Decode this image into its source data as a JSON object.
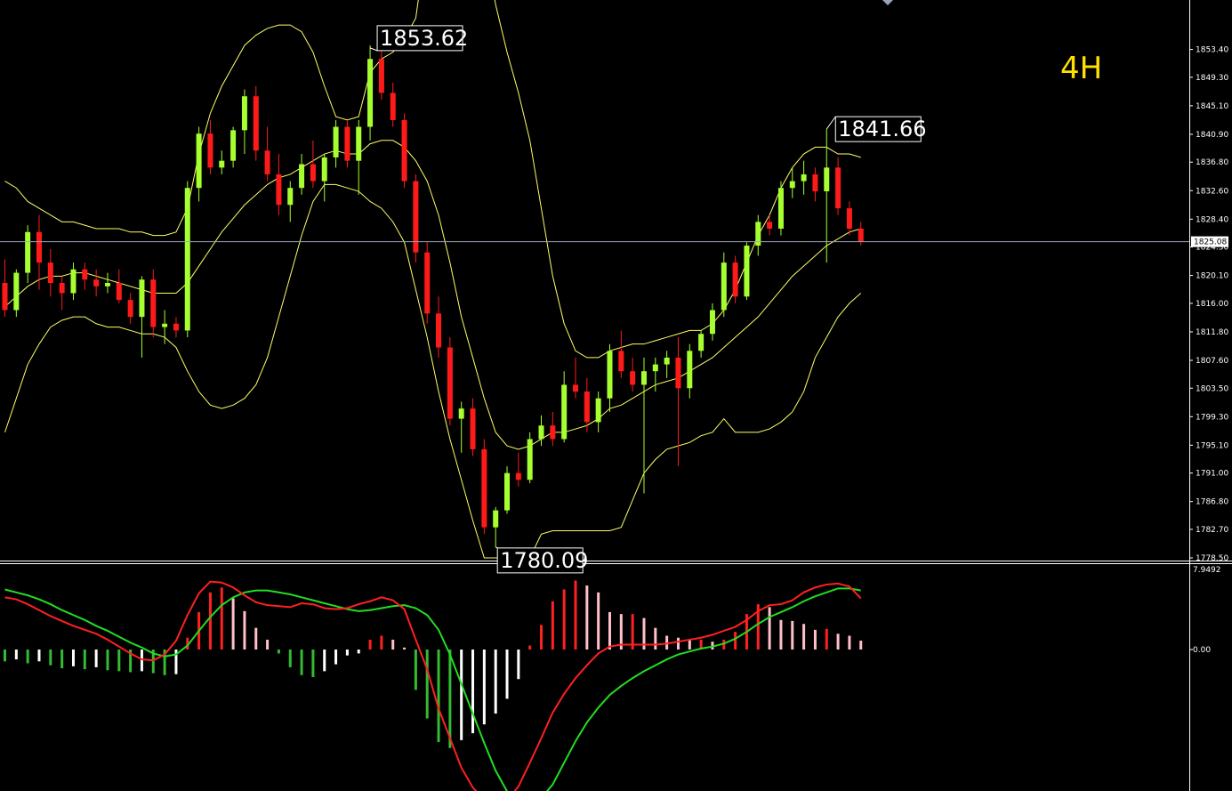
{
  "timeframe_label": "4H",
  "colors": {
    "background": "#000000",
    "bull": "#a6ff2e",
    "bear": "#ff1a1a",
    "band": "#ffff66",
    "macd_line": "#ff2020",
    "signal_line": "#22dd22",
    "hist_pos_grow": "#ff2020",
    "hist_pos_shrink": "#ffc0c8",
    "hist_neg_grow": "#33bb33",
    "hist_neg_shrink": "#ffffff",
    "axis": "#ffffff",
    "crosshair": "#9aa4b8"
  },
  "price_axis": {
    "ticks": [
      "1853.40",
      "1849.30",
      "1845.10",
      "1840.90",
      "1836.80",
      "1832.60",
      "1828.40",
      "1824.30",
      "1820.10",
      "1816.00",
      "1811.80",
      "1807.60",
      "1803.50",
      "1799.30",
      "1795.10",
      "1791.00",
      "1786.80",
      "1782.70",
      "1778.50"
    ],
    "current_price": "1825.08"
  },
  "annotations": [
    {
      "text": "1853.62"
    },
    {
      "text": "1841.66"
    },
    {
      "text": "1780.09"
    }
  ],
  "macd_axis": {
    "top_label": "7.9492",
    "zero_label": "0.00"
  },
  "chart_data": {
    "type": "candlestick",
    "price_range": [
      1778.5,
      1857.8
    ],
    "crosshair_price": 1825.08,
    "extremes": {
      "high": 1853.62,
      "recent_high": 1841.66,
      "low": 1780.09
    },
    "candles": [
      [
        1819.0,
        1822.5,
        1814.0,
        1815.0
      ],
      [
        1815.0,
        1821.0,
        1814.0,
        1820.5
      ],
      [
        1820.5,
        1827.5,
        1819.0,
        1826.5
      ],
      [
        1826.5,
        1829.0,
        1818.0,
        1822.0
      ],
      [
        1822.0,
        1824.0,
        1817.0,
        1819.0
      ],
      [
        1819.0,
        1820.0,
        1815.0,
        1817.5
      ],
      [
        1817.5,
        1822.0,
        1816.5,
        1821.0
      ],
      [
        1821.0,
        1822.0,
        1818.0,
        1819.5
      ],
      [
        1819.5,
        1821.0,
        1817.0,
        1818.5
      ],
      [
        1818.5,
        1820.5,
        1817.5,
        1819.0
      ],
      [
        1819.0,
        1821.0,
        1816.0,
        1816.5
      ],
      [
        1816.5,
        1817.5,
        1813.0,
        1814.0
      ],
      [
        1814.0,
        1820.0,
        1808.0,
        1819.5
      ],
      [
        1819.5,
        1821.0,
        1811.0,
        1812.5
      ],
      [
        1812.5,
        1815.0,
        1810.0,
        1813.0
      ],
      [
        1813.0,
        1814.0,
        1811.0,
        1812.0
      ],
      [
        1812.0,
        1834.0,
        1811.0,
        1833.0
      ],
      [
        1833.0,
        1842.0,
        1831.0,
        1841.0
      ],
      [
        1841.0,
        1843.0,
        1835.0,
        1836.0
      ],
      [
        1836.0,
        1838.5,
        1835.0,
        1837.0
      ],
      [
        1837.0,
        1842.0,
        1836.0,
        1841.5
      ],
      [
        1841.5,
        1847.5,
        1838.0,
        1846.5
      ],
      [
        1846.5,
        1848.0,
        1837.0,
        1838.5
      ],
      [
        1838.5,
        1842.0,
        1834.0,
        1835.0
      ],
      [
        1835.0,
        1838.0,
        1829.0,
        1830.5
      ],
      [
        1830.5,
        1834.0,
        1828.0,
        1833.0
      ],
      [
        1833.0,
        1838.0,
        1832.0,
        1836.5
      ],
      [
        1836.5,
        1840.0,
        1833.0,
        1834.0
      ],
      [
        1834.0,
        1838.0,
        1831.0,
        1837.5
      ],
      [
        1837.5,
        1843.0,
        1836.0,
        1842.0
      ],
      [
        1842.0,
        1843.0,
        1836.0,
        1837.0
      ],
      [
        1837.0,
        1843.0,
        1832.0,
        1842.0
      ],
      [
        1842.0,
        1854.0,
        1840.0,
        1852.0
      ],
      [
        1852.0,
        1853.62,
        1846.0,
        1847.0
      ],
      [
        1847.0,
        1848.5,
        1842.0,
        1843.0
      ],
      [
        1843.0,
        1844.0,
        1833.0,
        1834.0
      ],
      [
        1834.0,
        1835.0,
        1822.0,
        1823.5
      ],
      [
        1823.5,
        1825.0,
        1813.0,
        1814.5
      ],
      [
        1814.5,
        1817.0,
        1808.0,
        1809.5
      ],
      [
        1809.5,
        1811.0,
        1798.0,
        1799.0
      ],
      [
        1799.0,
        1801.5,
        1794.0,
        1800.5
      ],
      [
        1800.5,
        1802.0,
        1793.5,
        1794.5
      ],
      [
        1794.5,
        1796.0,
        1782.0,
        1783.0
      ],
      [
        1783.0,
        1786.0,
        1780.09,
        1785.5
      ],
      [
        1785.5,
        1792.0,
        1785.0,
        1791.0
      ],
      [
        1791.0,
        1794.0,
        1789.0,
        1790.0
      ],
      [
        1790.0,
        1797.0,
        1789.5,
        1796.0
      ],
      [
        1796.0,
        1799.5,
        1795.0,
        1798.0
      ],
      [
        1798.0,
        1800.0,
        1795.0,
        1796.0
      ],
      [
        1796.0,
        1806.0,
        1795.5,
        1804.0
      ],
      [
        1804.0,
        1808.0,
        1802.0,
        1803.0
      ],
      [
        1803.0,
        1805.0,
        1797.0,
        1798.5
      ],
      [
        1798.5,
        1803.0,
        1797.0,
        1802.0
      ],
      [
        1802.0,
        1810.0,
        1800.0,
        1809.0
      ],
      [
        1809.0,
        1812.0,
        1805.0,
        1806.0
      ],
      [
        1806.0,
        1808.0,
        1803.0,
        1804.0
      ],
      [
        1804.0,
        1808.0,
        1788.0,
        1806.0
      ],
      [
        1806.0,
        1808.0,
        1803.0,
        1807.0
      ],
      [
        1807.0,
        1809.0,
        1805.0,
        1808.0
      ],
      [
        1808.0,
        1811.0,
        1792.0,
        1803.5
      ],
      [
        1803.5,
        1810.0,
        1802.0,
        1809.0
      ],
      [
        1809.0,
        1812.0,
        1808.0,
        1811.5
      ],
      [
        1811.5,
        1816.0,
        1810.5,
        1815.0
      ],
      [
        1815.0,
        1823.5,
        1814.0,
        1822.0
      ],
      [
        1822.0,
        1823.0,
        1816.0,
        1817.0
      ],
      [
        1817.0,
        1825.0,
        1816.5,
        1824.5
      ],
      [
        1824.5,
        1829.0,
        1823.0,
        1828.0
      ],
      [
        1828.0,
        1829.0,
        1826.0,
        1827.0
      ],
      [
        1827.0,
        1834.0,
        1826.0,
        1833.0
      ],
      [
        1833.0,
        1836.0,
        1831.5,
        1834.0
      ],
      [
        1834.0,
        1837.0,
        1832.0,
        1835.0
      ],
      [
        1835.0,
        1836.0,
        1831.0,
        1832.5
      ],
      [
        1832.5,
        1841.66,
        1822.0,
        1836.0
      ],
      [
        1836.0,
        1837.5,
        1829.0,
        1830.0
      ],
      [
        1830.0,
        1831.0,
        1826.0,
        1827.0
      ],
      [
        1827.0,
        1828.0,
        1824.5,
        1825.08
      ]
    ],
    "band_upper": [
      1834.0,
      1833.0,
      1831.0,
      1830.0,
      1829.0,
      1828.0,
      1828.0,
      1827.5,
      1827.0,
      1827.0,
      1827.0,
      1826.5,
      1826.5,
      1826.0,
      1826.0,
      1826.5,
      1830.0,
      1838.0,
      1844.0,
      1848.0,
      1851.0,
      1854.0,
      1855.5,
      1856.5,
      1857.0,
      1857.0,
      1856.0,
      1853.0,
      1848.0,
      1843.5,
      1843.0,
      1843.5,
      1850.0,
      1852.0,
      1853.0,
      1855.0,
      1858.0,
      1870.0,
      1870.0,
      1870.0,
      1870.0,
      1870.0,
      1870.0,
      1860.0,
      1853.0,
      1847.0,
      1840.0,
      1830.0,
      1820.0,
      1813.0,
      1809.0,
      1808.0,
      1808.0,
      1809.0,
      1809.5,
      1810.0,
      1810.0,
      1810.5,
      1811.0,
      1811.5,
      1812.0,
      1812.0,
      1813.0,
      1815.0,
      1818.0,
      1822.0,
      1826.0,
      1829.0,
      1833.0,
      1836.0,
      1838.0,
      1839.0,
      1839.0,
      1838.0,
      1838.0,
      1837.5
    ],
    "band_lower": [
      1797.0,
      1802.0,
      1807.0,
      1810.0,
      1812.5,
      1813.5,
      1814.0,
      1814.0,
      1813.0,
      1812.5,
      1812.5,
      1812.0,
      1811.5,
      1811.5,
      1811.0,
      1809.5,
      1806.0,
      1803.0,
      1801.0,
      1800.5,
      1801.0,
      1802.0,
      1804.0,
      1808.0,
      1814.0,
      1820.0,
      1826.0,
      1831.0,
      1833.5,
      1833.5,
      1833.0,
      1832.5,
      1831.0,
      1830.0,
      1828.0,
      1825.0,
      1818.0,
      1811.0,
      1803.0,
      1796.0,
      1790.0,
      1784.0,
      1778.5,
      1778.5,
      1778.5,
      1778.5,
      1778.5,
      1782.0,
      1782.5,
      1782.5,
      1782.5,
      1782.5,
      1782.5,
      1782.5,
      1783.0,
      1787.0,
      1791.0,
      1793.0,
      1794.5,
      1795.0,
      1795.5,
      1796.5,
      1797.0,
      1799.0,
      1797.0,
      1797.0,
      1797.0,
      1797.5,
      1798.5,
      1800.0,
      1803.0,
      1808.0,
      1811.0,
      1814.0,
      1816.0,
      1817.5
    ],
    "band_middle": [
      1815.5,
      1817.0,
      1818.5,
      1819.5,
      1820.0,
      1820.0,
      1820.5,
      1820.5,
      1820.0,
      1819.5,
      1819.0,
      1818.5,
      1818.0,
      1817.5,
      1817.5,
      1817.5,
      1819.0,
      1821.5,
      1824.0,
      1826.5,
      1828.5,
      1830.5,
      1832.0,
      1833.5,
      1834.5,
      1835.0,
      1836.0,
      1837.0,
      1838.0,
      1838.5,
      1838.0,
      1838.0,
      1839.5,
      1840.0,
      1840.0,
      1839.0,
      1837.0,
      1834.0,
      1829.0,
      1822.0,
      1814.0,
      1808.0,
      1802.0,
      1797.0,
      1795.0,
      1794.5,
      1795.0,
      1796.0,
      1797.0,
      1797.0,
      1797.5,
      1798.0,
      1799.0,
      1800.5,
      1801.0,
      1802.0,
      1803.0,
      1804.0,
      1804.5,
      1805.0,
      1806.0,
      1807.0,
      1808.0,
      1809.5,
      1811.0,
      1812.5,
      1814.0,
      1816.0,
      1818.0,
      1820.0,
      1821.5,
      1823.0,
      1824.5,
      1825.5,
      1826.5,
      1827.0
    ],
    "macd": {
      "range": [
        -10.0,
        7.9492
      ],
      "histogram": [
        -1.2,
        -1.0,
        -1.4,
        -1.2,
        -1.6,
        -1.9,
        -1.7,
        -2.0,
        -1.8,
        -2.1,
        -2.2,
        -2.3,
        -2.2,
        -2.4,
        -2.6,
        -2.5,
        1.2,
        3.8,
        5.8,
        6.3,
        5.2,
        3.9,
        2.2,
        1.0,
        -0.4,
        -1.8,
        -2.6,
        -2.8,
        -2.2,
        -1.5,
        -0.6,
        -0.4,
        1.0,
        1.4,
        1.0,
        0.2,
        -4.1,
        -7.0,
        -9.4,
        -10.0,
        -9.2,
        -8.5,
        -7.6,
        -6.5,
        -5.0,
        -3.0,
        0.4,
        2.5,
        4.9,
        6.1,
        7.0,
        6.5,
        5.8,
        3.8,
        3.6,
        3.6,
        3.2,
        2.2,
        1.4,
        1.2,
        1.0,
        1.0,
        0.8,
        1.0,
        1.8,
        3.6,
        4.6,
        4.3,
        3.0,
        2.9,
        2.6,
        2.0,
        2.1,
        1.6,
        1.4,
        0.9
      ],
      "macd_line": [
        5.3,
        5.1,
        4.6,
        4.0,
        3.4,
        2.9,
        2.4,
        2.0,
        1.6,
        1.0,
        0.3,
        -0.4,
        -1.0,
        -1.1,
        -0.5,
        0.9,
        3.5,
        5.7,
        6.9,
        6.8,
        6.3,
        5.5,
        4.8,
        4.5,
        4.4,
        4.3,
        4.7,
        4.6,
        4.2,
        4.1,
        4.2,
        4.6,
        4.9,
        5.3,
        5.0,
        4.1,
        1.0,
        -2.0,
        -6.0,
        -9.0,
        -12.0,
        -14.0,
        -15.3,
        -15.7,
        -15.4,
        -13.9,
        -11.5,
        -9.0,
        -6.4,
        -4.5,
        -2.9,
        -1.6,
        -0.4,
        0.3,
        0.5,
        0.5,
        0.5,
        0.5,
        0.6,
        0.8,
        1.0,
        1.2,
        1.5,
        1.9,
        2.3,
        3.0,
        3.9,
        4.5,
        4.6,
        5.0,
        5.8,
        6.3,
        6.6,
        6.7,
        6.4,
        5.2
      ],
      "signal_line": [
        6.1,
        5.8,
        5.5,
        5.1,
        4.6,
        4.0,
        3.5,
        3.0,
        2.4,
        1.9,
        1.3,
        0.7,
        0.2,
        -0.4,
        -0.7,
        -0.5,
        0.4,
        1.9,
        3.3,
        4.5,
        5.3,
        5.8,
        6.0,
        6.0,
        5.8,
        5.6,
        5.3,
        5.0,
        4.7,
        4.4,
        4.1,
        3.9,
        4.0,
        4.2,
        4.4,
        4.5,
        4.2,
        3.5,
        2.0,
        -0.5,
        -3.5,
        -6.5,
        -9.5,
        -12.3,
        -14.4,
        -15.4,
        -15.6,
        -15.1,
        -13.7,
        -11.5,
        -9.3,
        -7.4,
        -5.9,
        -4.6,
        -3.7,
        -2.9,
        -2.2,
        -1.6,
        -1.0,
        -0.5,
        -0.2,
        0.1,
        0.3,
        0.6,
        1.1,
        1.8,
        2.6,
        3.3,
        3.8,
        4.3,
        4.9,
        5.4,
        5.8,
        6.2,
        6.2,
        6.0
      ]
    }
  }
}
